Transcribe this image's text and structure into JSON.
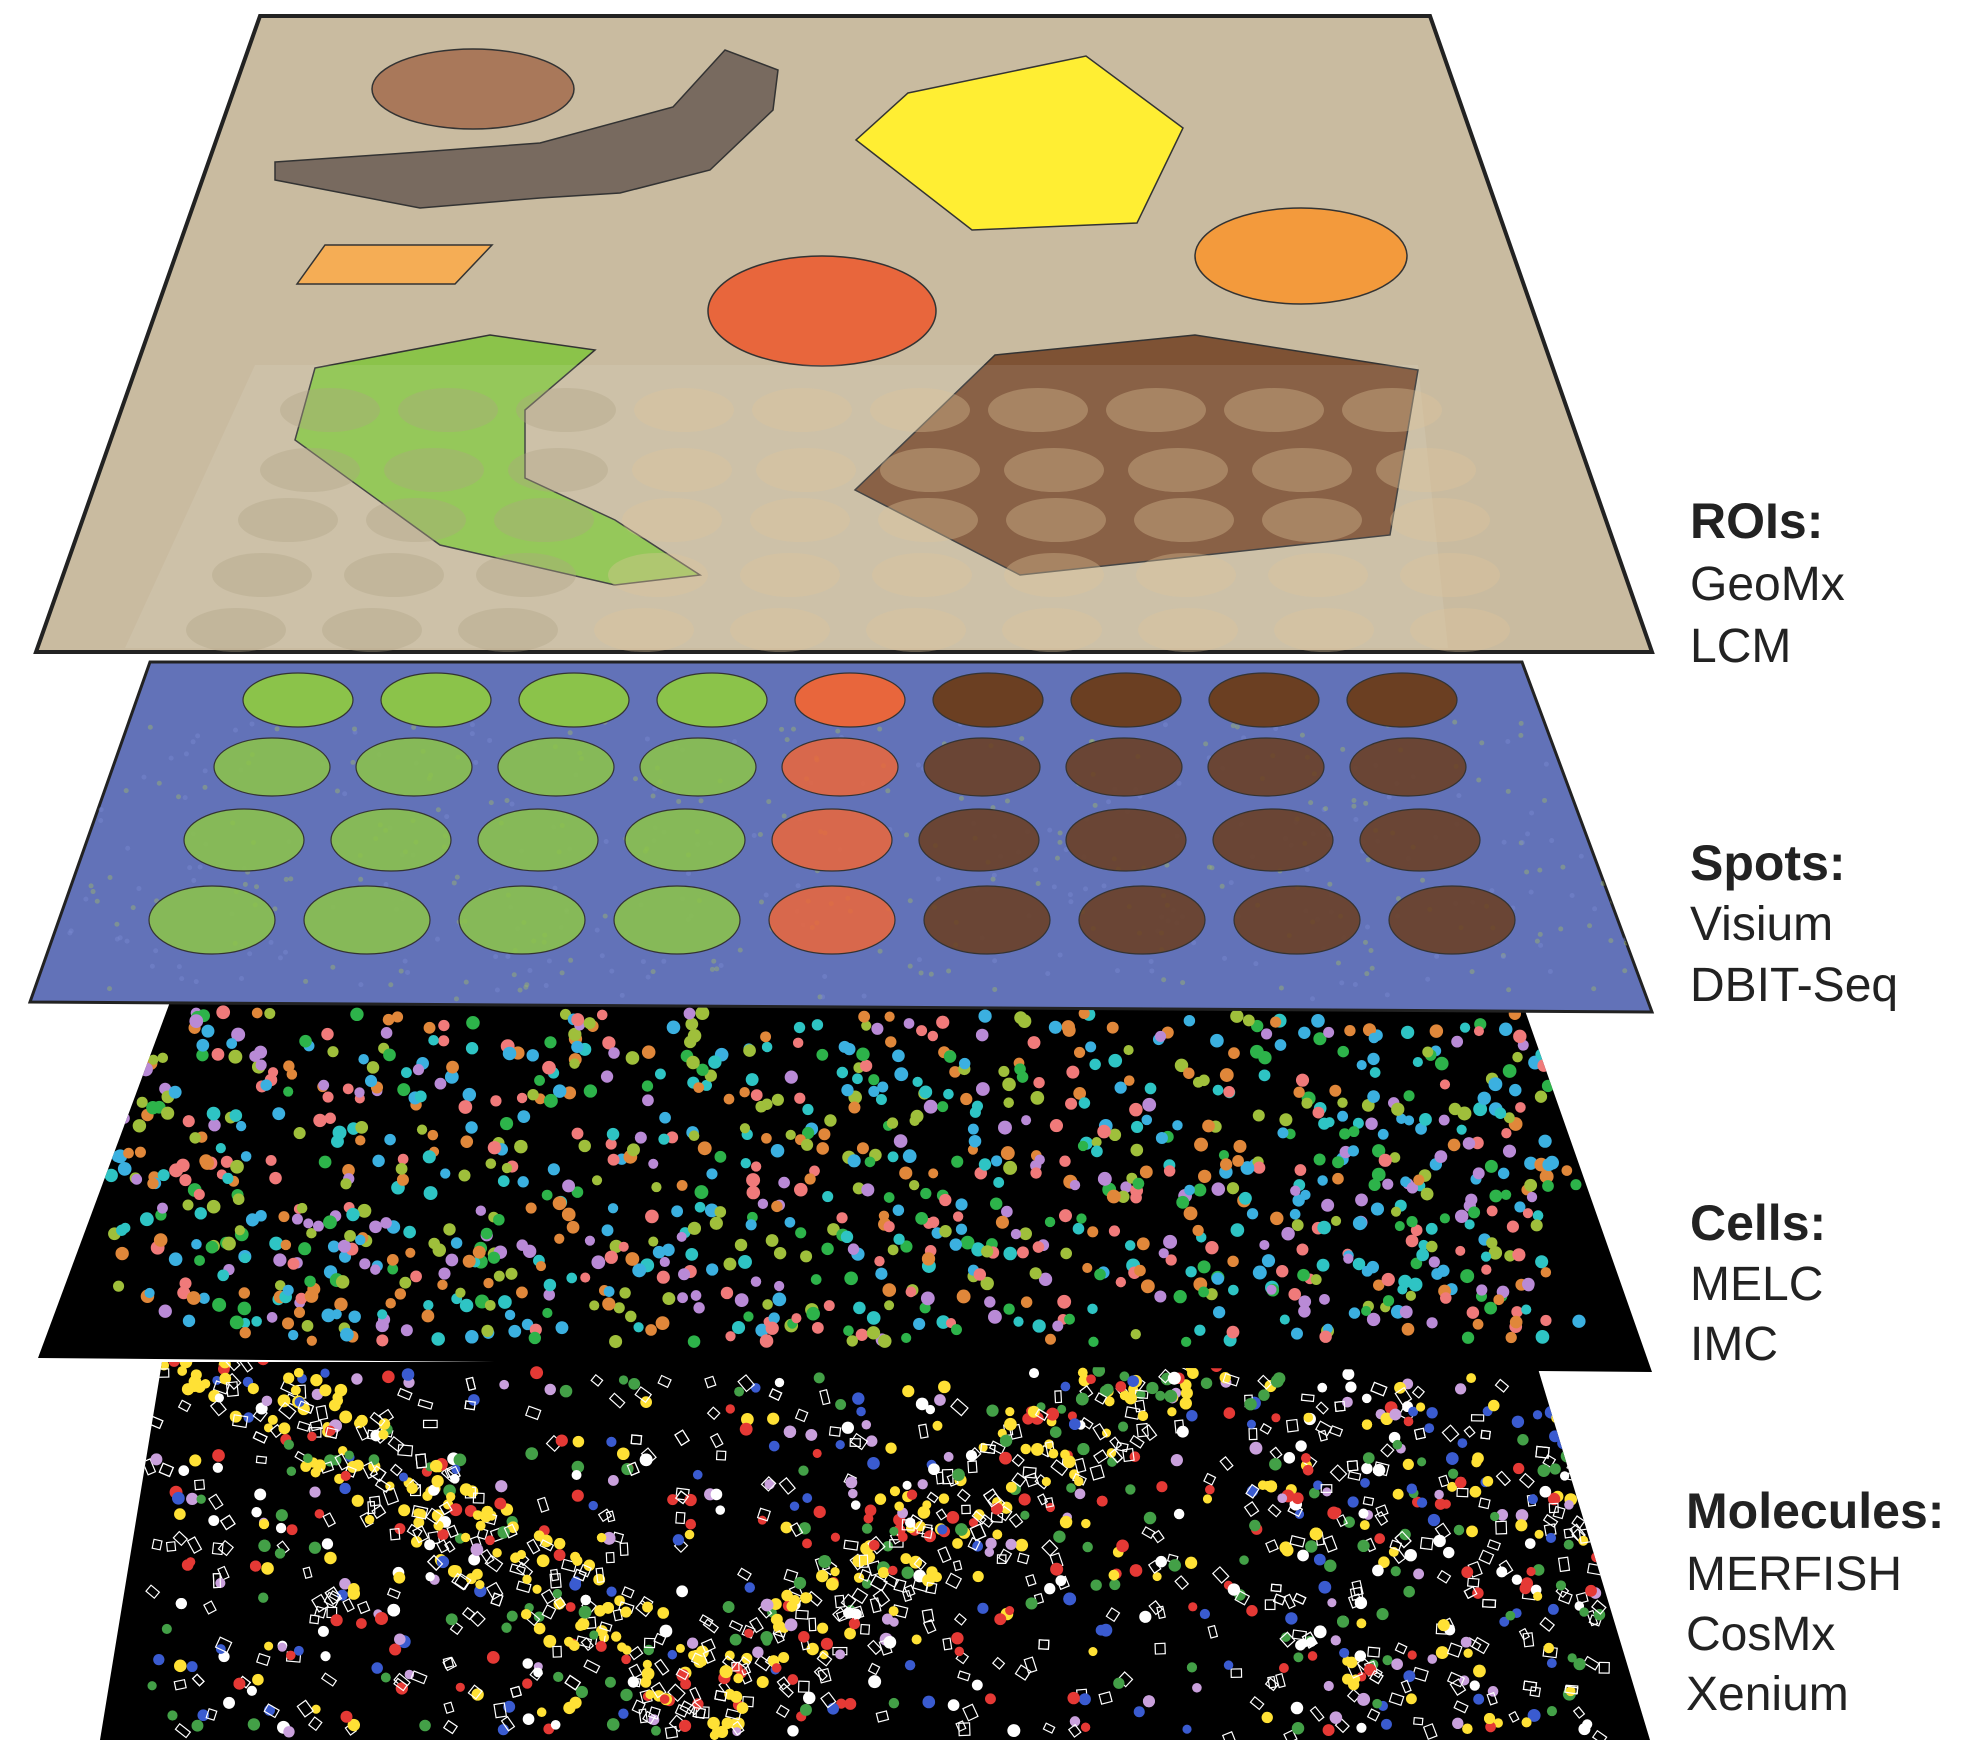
{
  "layers": [
    {
      "key": "rois",
      "title": "ROIs:",
      "methods": [
        "GeoMx",
        "LCM"
      ],
      "fill": "#c9bba0"
    },
    {
      "key": "spots",
      "title": "Spots:",
      "methods": [
        "Visium",
        "DBIT-Seq"
      ],
      "fill": "#5b6db3"
    },
    {
      "key": "cells",
      "title": "Cells:",
      "methods": [
        "MELC",
        "IMC"
      ],
      "fill": "#000000"
    },
    {
      "key": "molecules",
      "title": "Molecules:",
      "methods": [
        "MERFISH",
        "CosMx",
        "Xenium"
      ],
      "fill": "#000000"
    }
  ],
  "colors": {
    "green": "#8bc34a",
    "orange_red": "#e8663c",
    "brown": "#6b3f22",
    "yellow": "#ffee33",
    "orange": "#f39a3c",
    "light_orange": "#f5ad55",
    "tan_brown": "#a9785a",
    "gray_brown": "#786a5f",
    "cell_palette": [
      "#3bb0e0",
      "#2db34a",
      "#e0873a",
      "#b98ad6",
      "#f07a7a",
      "#2ec4c4",
      "#9fbf3b"
    ],
    "molecule_palette": [
      "#ffe135",
      "#e53935",
      "#3a5bd0",
      "#43a047",
      "#ffffff",
      "#c9a0dc"
    ]
  }
}
